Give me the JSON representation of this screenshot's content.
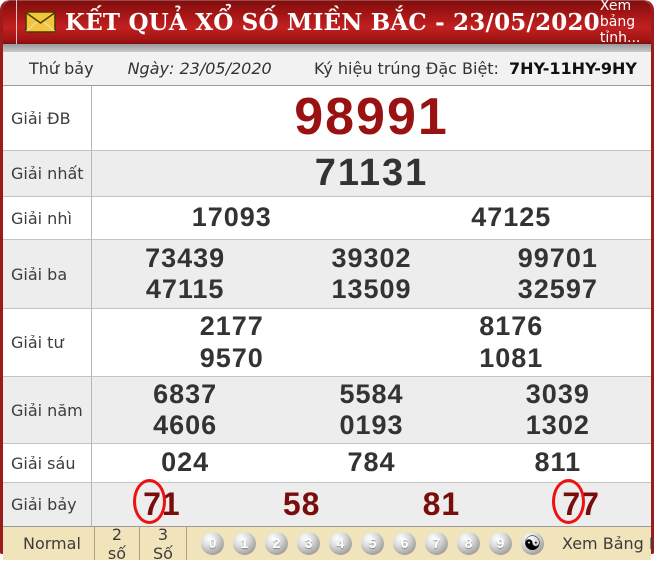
{
  "header": {
    "title": "KẾT QUẢ XỔ SỐ MIỀN BẮC - 23/05/2020",
    "link_label": "Xem bảng tỉnh..."
  },
  "info": {
    "weekday": "Thứ bảy",
    "date": "Ngày: 23/05/2020",
    "symbol_label": "Ký hiệu trúng Đặc Biệt:",
    "symbol_value": "7HY-11HY-9HY"
  },
  "prizes": [
    {
      "key": "db",
      "label": "Giải ĐB",
      "rows": [
        [
          "98991"
        ]
      ]
    },
    {
      "key": "nhat",
      "label": "Giải nhất",
      "rows": [
        [
          "71131"
        ]
      ]
    },
    {
      "key": "nhi",
      "label": "Giải nhì",
      "rows": [
        [
          "17093",
          "47125"
        ]
      ]
    },
    {
      "key": "ba",
      "label": "Giải ba",
      "rows": [
        [
          "73439",
          "39302",
          "99701"
        ],
        [
          "47115",
          "13509",
          "32597"
        ]
      ]
    },
    {
      "key": "tu",
      "label": "Giải tư",
      "rows": [
        [
          "2177",
          "8176"
        ],
        [
          "9570",
          "1081"
        ]
      ]
    },
    {
      "key": "nam",
      "label": "Giải năm",
      "rows": [
        [
          "6837",
          "5584",
          "3039"
        ],
        [
          "4606",
          "0193",
          "1302"
        ]
      ]
    },
    {
      "key": "sau",
      "label": "Giải sáu",
      "rows": [
        [
          "024",
          "784",
          "811"
        ]
      ]
    },
    {
      "key": "bay",
      "label": "Giải bảy",
      "rows": [
        [
          "71",
          "58",
          "81",
          "77"
        ]
      ],
      "circles": [
        {
          "line": 0,
          "cell": 0,
          "digit": 0
        },
        {
          "line": 0,
          "cell": 3,
          "digit": 0
        }
      ]
    }
  ],
  "footer": {
    "modes": [
      {
        "key": "normal",
        "label": "Normal"
      },
      {
        "key": "2so",
        "label": "2 số"
      },
      {
        "key": "3so",
        "label": "3 Số"
      }
    ],
    "balls": [
      "0",
      "1",
      "2",
      "3",
      "4",
      "5",
      "6",
      "7",
      "8",
      "9"
    ],
    "yinyang_symbol": "☯",
    "loto_label": "Xem Bảng Loto"
  },
  "colors": {
    "border_red": "#9c1b1b",
    "special": "#991111",
    "seventh": "#7a0c0c",
    "number": "#333333",
    "circle": "#ee1111",
    "footer_bg": "#f2e4ba"
  }
}
